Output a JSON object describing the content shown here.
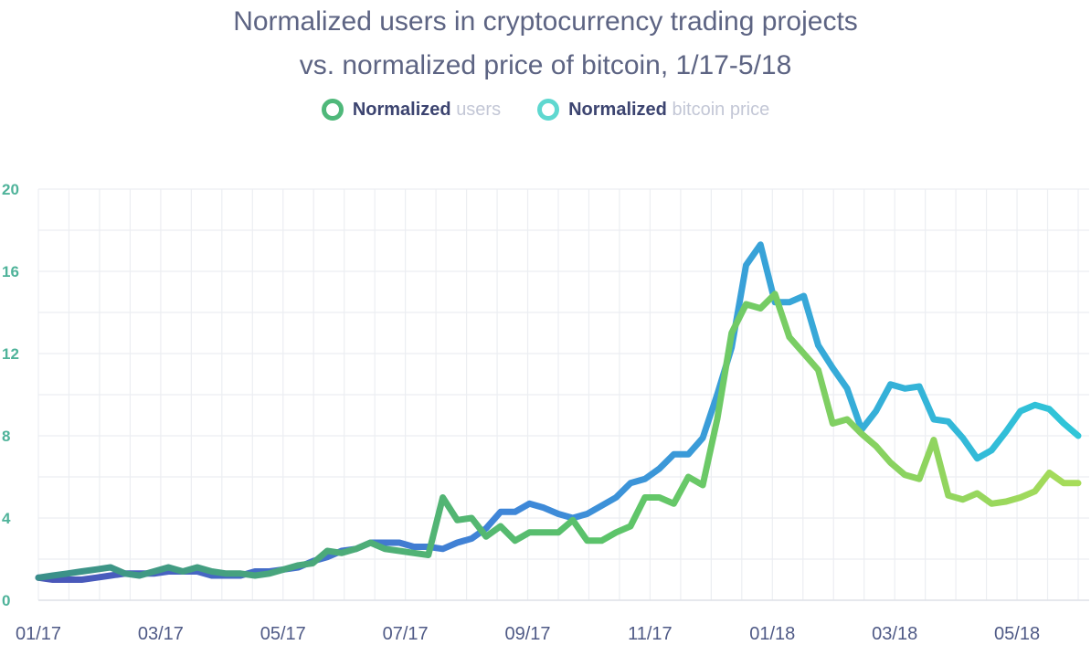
{
  "title": {
    "line1": "Normalized users in cryptocurrency trading projects",
    "line2": "vs. normalized price of bitcoin, 1/17-5/18"
  },
  "legend": [
    {
      "strong": "Normalized",
      "light": "users",
      "color": "#6acb5c"
    },
    {
      "strong": "Normalized",
      "light": "bitcoin price",
      "color": "#36c2d6"
    }
  ],
  "chart_data": {
    "type": "line",
    "title": "Normalized users in cryptocurrency trading projects vs. normalized price of bitcoin, 1/17-5/18",
    "xlabel": "",
    "ylabel": "",
    "ylim": [
      0,
      20
    ],
    "yticks": [
      "0",
      "4",
      "8",
      "12",
      "16",
      "20"
    ],
    "xtick_labels": [
      "01/17",
      "03/17",
      "05/17",
      "07/17",
      "09/17",
      "11/17",
      "01/18",
      "03/18",
      "05/18"
    ],
    "grid": true,
    "x_unit": "weeks",
    "series": [
      {
        "name": "Normalized users",
        "color": "#6acb5c",
        "values": [
          1.1,
          1.2,
          1.3,
          1.4,
          1.5,
          1.6,
          1.3,
          1.2,
          1.4,
          1.6,
          1.4,
          1.6,
          1.4,
          1.3,
          1.3,
          1.2,
          1.3,
          1.5,
          1.7,
          1.8,
          2.4,
          2.3,
          2.5,
          2.8,
          2.5,
          2.4,
          2.3,
          2.2,
          5.0,
          3.9,
          4.0,
          3.1,
          3.6,
          2.9,
          3.3,
          3.3,
          3.3,
          3.9,
          2.9,
          2.9,
          3.3,
          3.6,
          5.0,
          5.0,
          4.7,
          6.0,
          5.6,
          8.8,
          13.0,
          14.4,
          14.2,
          14.9,
          12.8,
          12.0,
          11.2,
          8.6,
          8.8,
          8.1,
          7.5,
          6.7,
          6.1,
          5.9,
          7.8,
          5.1,
          4.9,
          5.2,
          4.7,
          4.8,
          5.0,
          5.3,
          6.2,
          5.7,
          5.7
        ]
      },
      {
        "name": "Normalized bitcoin price",
        "color": "#36c2d6",
        "values": [
          1.1,
          1.0,
          1.0,
          1.0,
          1.1,
          1.2,
          1.3,
          1.3,
          1.3,
          1.4,
          1.4,
          1.4,
          1.2,
          1.2,
          1.2,
          1.4,
          1.4,
          1.5,
          1.6,
          1.9,
          2.1,
          2.4,
          2.5,
          2.8,
          2.8,
          2.8,
          2.6,
          2.6,
          2.5,
          2.8,
          3.0,
          3.5,
          4.3,
          4.3,
          4.7,
          4.5,
          4.2,
          4.0,
          4.2,
          4.6,
          5.0,
          5.7,
          5.9,
          6.4,
          7.1,
          7.1,
          7.9,
          10.0,
          12.3,
          16.3,
          17.3,
          14.5,
          14.5,
          14.8,
          12.4,
          11.3,
          10.3,
          8.3,
          9.2,
          10.5,
          10.3,
          10.4,
          8.8,
          8.7,
          7.9,
          6.9,
          7.3,
          8.2,
          9.2,
          9.5,
          9.3,
          8.6,
          8.0
        ]
      }
    ]
  }
}
